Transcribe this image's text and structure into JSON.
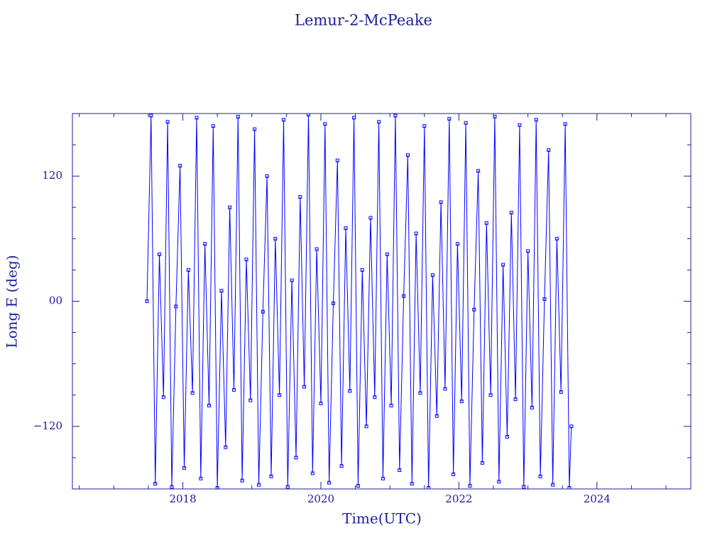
{
  "chart_data": {
    "type": "line",
    "title": "Lemur-2-McPeake",
    "xlabel": "Time(UTC)",
    "ylabel": "Long E (deg)",
    "color": "#0000ff",
    "axis_color": "#1c1c9c",
    "markers": true,
    "xlim": [
      2016.4,
      2025.36
    ],
    "ylim": [
      -180,
      180
    ],
    "xticks": [
      2018,
      2020,
      2022,
      2024
    ],
    "yticks": [
      {
        "value": -120,
        "label": "−120"
      },
      {
        "value": 0,
        "label": "00"
      },
      120
    ],
    "xminorticks": [
      2016.5,
      2017,
      2017.5,
      2018.5,
      2019,
      2019.5,
      2020.5,
      2021,
      2021.5,
      2022.5,
      2023,
      2023.5,
      2024.5,
      2025
    ],
    "yminorticks": [
      -150,
      -90,
      -60,
      -30,
      30,
      60,
      90,
      150
    ],
    "x": [
      2017.48,
      2017.54,
      2017.6,
      2017.66,
      2017.72,
      2017.78,
      2017.84,
      2017.9,
      2017.96,
      2018.02,
      2018.08,
      2018.14,
      2018.2,
      2018.26,
      2018.32,
      2018.38,
      2018.44,
      2018.5,
      2018.56,
      2018.62,
      2018.68,
      2018.74,
      2018.8,
      2018.86,
      2018.92,
      2018.98,
      2019.04,
      2019.1,
      2019.16,
      2019.22,
      2019.28,
      2019.34,
      2019.4,
      2019.46,
      2019.52,
      2019.58,
      2019.64,
      2019.7,
      2019.76,
      2019.82,
      2019.88,
      2019.94,
      2020.0,
      2020.06,
      2020.12,
      2020.18,
      2020.24,
      2020.3,
      2020.36,
      2020.42,
      2020.48,
      2020.54,
      2020.6,
      2020.66,
      2020.72,
      2020.78,
      2020.84,
      2020.9,
      2020.96,
      2021.02,
      2021.08,
      2021.14,
      2021.2,
      2021.26,
      2021.32,
      2021.38,
      2021.44,
      2021.5,
      2021.56,
      2021.62,
      2021.68,
      2021.74,
      2021.8,
      2021.86,
      2021.92,
      2021.98,
      2022.04,
      2022.1,
      2022.16,
      2022.22,
      2022.28,
      2022.34,
      2022.4,
      2022.46,
      2022.52,
      2022.58,
      2022.64,
      2022.7,
      2022.76,
      2022.82,
      2022.88,
      2022.94,
      2023.0,
      2023.06,
      2023.12,
      2023.18,
      2023.24,
      2023.3,
      2023.36,
      2023.42,
      2023.48,
      2023.54,
      2023.6,
      2023.63
    ],
    "values": [
      0,
      178,
      -175,
      45,
      -92,
      172,
      -178,
      -5,
      130,
      -160,
      30,
      -88,
      176,
      -170,
      55,
      -100,
      168,
      -179,
      10,
      -140,
      90,
      -85,
      177,
      -172,
      40,
      -95,
      165,
      -176,
      -10,
      120,
      -168,
      60,
      -90,
      174,
      -178,
      20,
      -150,
      100,
      -82,
      179,
      -165,
      50,
      -98,
      170,
      -174,
      -2,
      135,
      -158,
      70,
      -86,
      176,
      -177,
      30,
      -120,
      80,
      -92,
      172,
      -170,
      45,
      -100,
      178,
      -162,
      5,
      140,
      -175,
      65,
      -88,
      168,
      -179,
      25,
      -110,
      95,
      -84,
      175,
      -166,
      55,
      -96,
      171,
      -177,
      -8,
      125,
      -155,
      75,
      -90,
      177,
      -173,
      35,
      -130,
      85,
      -94,
      169,
      -178,
      48,
      -102,
      174,
      -168,
      2,
      145,
      -176,
      60,
      -87,
      170,
      -179,
      -120
    ]
  }
}
